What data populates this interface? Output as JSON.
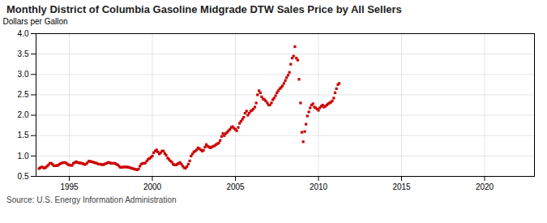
{
  "chart_data": {
    "type": "scatter",
    "title": "Monthly District of Columbia Gasoline Midgrade DTW Sales Price by All Sellers",
    "ylabel": "Dollars per Gallon",
    "source": "Source: U.S. Energy Information Administration",
    "color": "#cc0000",
    "marker": "square",
    "grid": true,
    "xlim": [
      1993.0,
      2023.0
    ],
    "xticks": [
      1995,
      2000,
      2005,
      2010,
      2015,
      2020
    ],
    "ylim": [
      0.5,
      4.0
    ],
    "yticks": [
      0.5,
      {
        "value": 1.0,
        "label": "1.0"
      },
      1.5,
      {
        "value": 2.0,
        "label": "2.0"
      },
      2.5,
      {
        "value": 3.0,
        "label": "3.0"
      },
      3.5,
      {
        "value": 4.0,
        "label": "4.0"
      }
    ],
    "x": [
      1993.17,
      1993.25,
      1993.33,
      1993.42,
      1993.5,
      1993.58,
      1993.67,
      1993.75,
      1993.83,
      1993.92,
      1994.0,
      1994.08,
      1994.17,
      1994.25,
      1994.33,
      1994.42,
      1994.5,
      1994.58,
      1994.67,
      1994.75,
      1994.83,
      1994.92,
      1995.0,
      1995.08,
      1995.17,
      1995.25,
      1995.33,
      1995.42,
      1995.5,
      1995.58,
      1995.67,
      1995.75,
      1995.83,
      1995.92,
      1996.0,
      1996.08,
      1996.17,
      1996.25,
      1996.33,
      1996.42,
      1996.5,
      1996.58,
      1996.67,
      1996.75,
      1996.83,
      1996.92,
      1997.0,
      1997.08,
      1997.17,
      1997.25,
      1997.33,
      1997.42,
      1997.5,
      1997.58,
      1997.67,
      1997.75,
      1997.83,
      1997.92,
      1998.0,
      1998.08,
      1998.17,
      1998.25,
      1998.33,
      1998.42,
      1998.5,
      1998.58,
      1998.67,
      1998.75,
      1998.83,
      1998.92,
      1999.0,
      1999.08,
      1999.17,
      1999.25,
      1999.33,
      1999.42,
      1999.5,
      1999.58,
      1999.67,
      1999.75,
      1999.83,
      1999.92,
      2000.0,
      2000.08,
      2000.17,
      2000.25,
      2000.33,
      2000.42,
      2000.5,
      2000.58,
      2000.67,
      2000.75,
      2000.83,
      2000.92,
      2001.0,
      2001.08,
      2001.17,
      2001.25,
      2001.33,
      2001.42,
      2001.5,
      2001.58,
      2001.67,
      2001.75,
      2001.83,
      2001.92,
      2002.0,
      2002.08,
      2002.17,
      2002.25,
      2002.33,
      2002.42,
      2002.5,
      2002.58,
      2002.67,
      2002.75,
      2002.83,
      2002.92,
      2003.0,
      2003.08,
      2003.17,
      2003.25,
      2003.33,
      2003.42,
      2003.5,
      2003.58,
      2003.67,
      2003.75,
      2003.83,
      2003.92,
      2004.0,
      2004.08,
      2004.17,
      2004.25,
      2004.33,
      2004.42,
      2004.5,
      2004.58,
      2004.67,
      2004.75,
      2004.83,
      2004.92,
      2005.0,
      2005.08,
      2005.17,
      2005.25,
      2005.33,
      2005.42,
      2005.5,
      2005.58,
      2005.67,
      2005.75,
      2005.83,
      2005.92,
      2006.0,
      2006.08,
      2006.17,
      2006.25,
      2006.33,
      2006.42,
      2006.5,
      2006.58,
      2006.67,
      2006.75,
      2006.83,
      2006.92,
      2007.0,
      2007.08,
      2007.17,
      2007.25,
      2007.33,
      2007.42,
      2007.5,
      2007.58,
      2007.67,
      2007.75,
      2007.83,
      2007.92,
      2008.0,
      2008.08,
      2008.17,
      2008.25,
      2008.33,
      2008.42,
      2008.5,
      2008.58,
      2008.67,
      2008.75,
      2008.83,
      2008.92,
      2009.0,
      2009.08,
      2009.17,
      2009.25,
      2009.33,
      2009.42,
      2009.5,
      2009.58,
      2009.67,
      2009.75,
      2009.83,
      2009.92,
      2010.0,
      2010.08,
      2010.17,
      2010.25,
      2010.33,
      2010.42,
      2010.5,
      2010.58,
      2010.67,
      2010.75,
      2010.83,
      2010.92,
      2011.0,
      2011.08,
      2011.17,
      2011.25
    ],
    "values": [
      0.69,
      0.71,
      0.73,
      0.72,
      0.7,
      0.72,
      0.75,
      0.78,
      0.82,
      0.82,
      0.79,
      0.76,
      0.76,
      0.77,
      0.77,
      0.8,
      0.82,
      0.83,
      0.84,
      0.84,
      0.82,
      0.79,
      0.78,
      0.77,
      0.77,
      0.82,
      0.84,
      0.86,
      0.84,
      0.83,
      0.83,
      0.82,
      0.81,
      0.79,
      0.8,
      0.83,
      0.87,
      0.87,
      0.86,
      0.85,
      0.84,
      0.83,
      0.82,
      0.8,
      0.8,
      0.79,
      0.79,
      0.79,
      0.81,
      0.82,
      0.84,
      0.84,
      0.82,
      0.82,
      0.82,
      0.82,
      0.8,
      0.78,
      0.75,
      0.72,
      0.72,
      0.73,
      0.73,
      0.73,
      0.73,
      0.72,
      0.71,
      0.7,
      0.69,
      0.68,
      0.67,
      0.66,
      0.68,
      0.75,
      0.8,
      0.82,
      0.82,
      0.83,
      0.88,
      0.92,
      0.94,
      0.97,
      1.0,
      1.08,
      1.12,
      1.15,
      1.1,
      1.05,
      1.08,
      1.12,
      1.12,
      1.06,
      1.02,
      0.95,
      0.92,
      0.88,
      0.85,
      0.8,
      0.78,
      0.78,
      0.8,
      0.82,
      0.84,
      0.8,
      0.75,
      0.71,
      0.7,
      0.74,
      0.8,
      0.88,
      1.0,
      1.05,
      1.1,
      1.12,
      1.15,
      1.2,
      1.18,
      1.15,
      1.12,
      1.14,
      1.22,
      1.28,
      1.24,
      1.22,
      1.2,
      1.22,
      1.24,
      1.25,
      1.28,
      1.3,
      1.32,
      1.38,
      1.48,
      1.55,
      1.5,
      1.55,
      1.58,
      1.62,
      1.65,
      1.7,
      1.72,
      1.68,
      1.65,
      1.62,
      1.7,
      1.8,
      1.85,
      1.9,
      1.95,
      2.05,
      2.1,
      2.0,
      2.05,
      2.1,
      2.12,
      2.15,
      2.2,
      2.3,
      2.5,
      2.6,
      2.55,
      2.45,
      2.4,
      2.38,
      2.35,
      2.3,
      2.25,
      2.25,
      2.3,
      2.38,
      2.42,
      2.48,
      2.55,
      2.6,
      2.65,
      2.68,
      2.72,
      2.78,
      2.85,
      2.92,
      2.98,
      3.05,
      3.25,
      3.4,
      3.45,
      3.68,
      3.4,
      3.35,
      2.88,
      2.3,
      1.58,
      1.35,
      1.6,
      1.78,
      1.98,
      2.08,
      2.18,
      2.25,
      2.28,
      2.2,
      2.18,
      2.15,
      2.12,
      2.18,
      2.22,
      2.25,
      2.2,
      2.22,
      2.25,
      2.28,
      2.3,
      2.32,
      2.35,
      2.42,
      2.55,
      2.65,
      2.75,
      2.78
    ]
  }
}
